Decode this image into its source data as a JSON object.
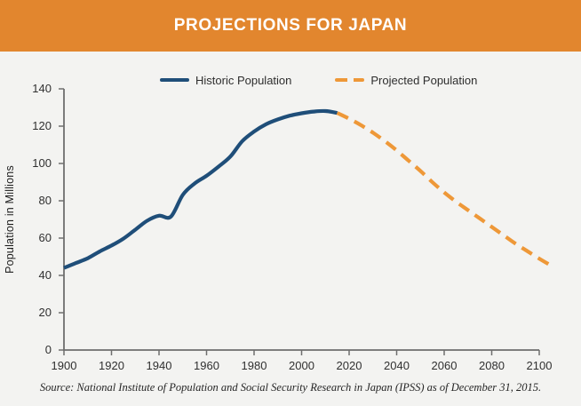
{
  "header": {
    "title": "PROJECTIONS FOR JAPAN"
  },
  "colors": {
    "header_bg": "#E2862E",
    "header_text": "#FFFFFF",
    "page_bg": "#F3F3F1",
    "historic_line": "#1F4E79",
    "projected_line": "#EE9838",
    "axis": "#6E6E6E",
    "tick_label": "#303030"
  },
  "source_note": "Source: National Institute of Population and Social Security Research in Japan (IPSS) as of December 31, 2015.",
  "chart_data": {
    "type": "line",
    "title": "PROJECTIONS FOR JAPAN",
    "xlabel": "",
    "ylabel": "Population in Millions",
    "xlim": [
      1900,
      2105
    ],
    "ylim": [
      0,
      140
    ],
    "x_ticks": [
      1900,
      1920,
      1940,
      1960,
      1980,
      2000,
      2020,
      2040,
      2060,
      2080,
      2100
    ],
    "y_ticks": [
      0,
      20,
      40,
      60,
      80,
      100,
      120,
      140
    ],
    "grid": false,
    "legend_position": "top-center",
    "series": [
      {
        "name": "Historic Population",
        "style": "solid",
        "color": "#1F4E79",
        "points": [
          [
            1900,
            44.0
          ],
          [
            1905,
            46.6
          ],
          [
            1910,
            49.2
          ],
          [
            1915,
            52.8
          ],
          [
            1920,
            56.0
          ],
          [
            1925,
            59.7
          ],
          [
            1930,
            64.5
          ],
          [
            1935,
            69.3
          ],
          [
            1940,
            72.0
          ],
          [
            1945,
            71.5
          ],
          [
            1950,
            83.2
          ],
          [
            1955,
            89.3
          ],
          [
            1960,
            93.4
          ],
          [
            1965,
            98.3
          ],
          [
            1970,
            103.7
          ],
          [
            1975,
            111.9
          ],
          [
            1980,
            117.1
          ],
          [
            1985,
            121.0
          ],
          [
            1990,
            123.6
          ],
          [
            1995,
            125.6
          ],
          [
            2000,
            126.9
          ],
          [
            2005,
            127.8
          ],
          [
            2010,
            128.1
          ],
          [
            2015,
            127.1
          ]
        ]
      },
      {
        "name": "Projected Population",
        "style": "dashed",
        "color": "#EE9838",
        "points": [
          [
            2015,
            127.1
          ],
          [
            2020,
            124.0
          ],
          [
            2025,
            120.5
          ],
          [
            2030,
            116.5
          ],
          [
            2035,
            112.0
          ],
          [
            2040,
            107.0
          ],
          [
            2045,
            101.5
          ],
          [
            2050,
            96.0
          ],
          [
            2055,
            90.0
          ],
          [
            2060,
            84.5
          ],
          [
            2065,
            79.5
          ],
          [
            2070,
            75.0
          ],
          [
            2075,
            70.5
          ],
          [
            2080,
            66.0
          ],
          [
            2085,
            61.5
          ],
          [
            2090,
            57.0
          ],
          [
            2095,
            53.0
          ],
          [
            2100,
            49.0
          ],
          [
            2104,
            46.0
          ]
        ]
      }
    ]
  }
}
